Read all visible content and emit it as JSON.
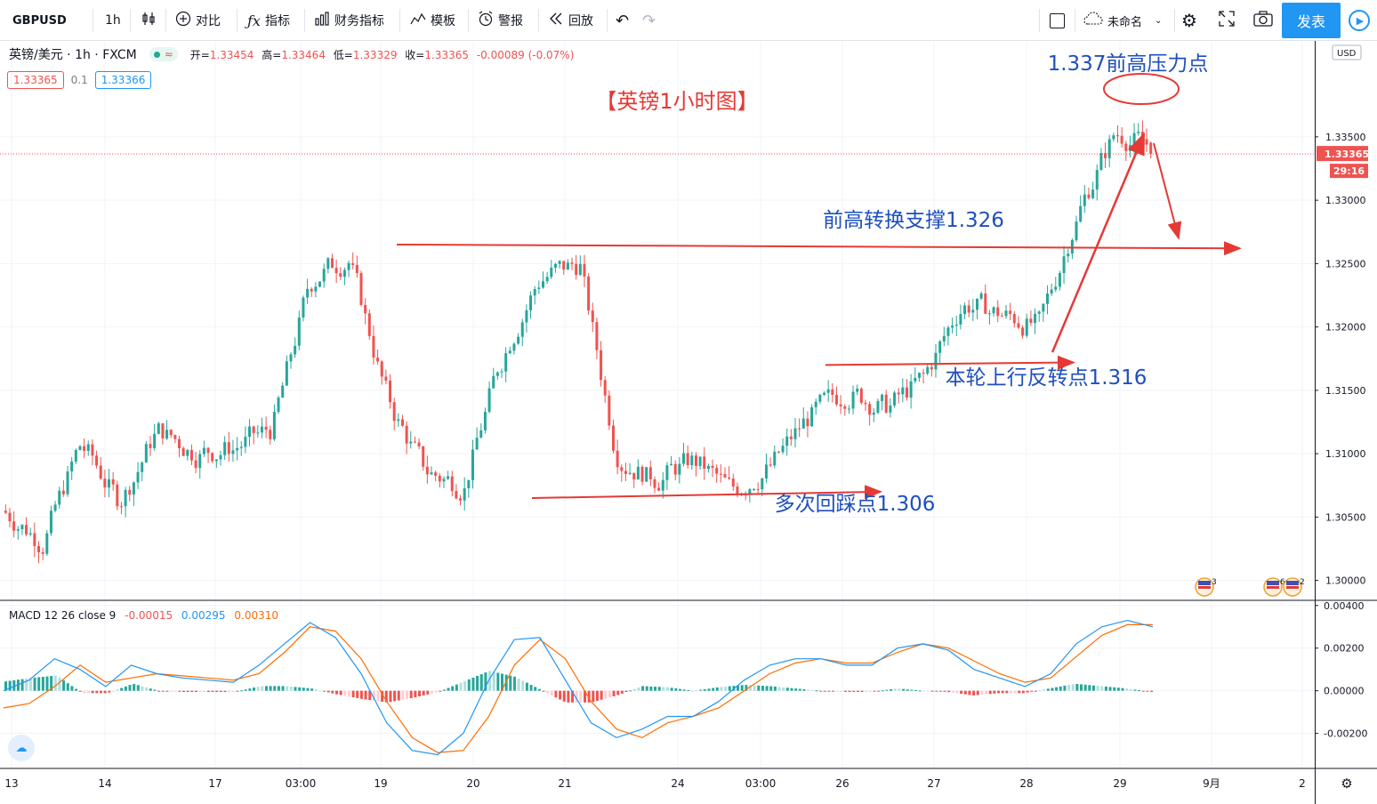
{
  "toolbar": {
    "symbol": "GBPUSD",
    "interval": "1h",
    "compare": "对比",
    "indicators": "指标",
    "financials": "财务指标",
    "templates": "模板",
    "alerts": "警报",
    "replay": "回放",
    "layout_name": "未命名",
    "publish": "发表",
    "icons": [
      "candles-icon",
      "compare-icon",
      "indicator-icon",
      "financials-icon",
      "template-icon",
      "alarm-icon",
      "replay-icon",
      "undo-icon",
      "redo-icon",
      "square-icon",
      "cloud-icon",
      "gear-icon",
      "fullscreen-icon",
      "camera-icon",
      "play-icon"
    ]
  },
  "legend": {
    "symbol_label": "英镑/美元 · 1h · FXCM",
    "ohlc": [
      {
        "label": "开=",
        "value": "1.33454"
      },
      {
        "label": "高=",
        "value": "1.33464"
      },
      {
        "label": "低=",
        "value": "1.33329"
      },
      {
        "label": "收=",
        "value": "1.33365"
      }
    ],
    "change": "-0.00089 (-0.07%)",
    "bid": "1.33365",
    "spread": "0.1",
    "ask": "1.33366"
  },
  "macd_legend": {
    "label": "MACD 12 26 close 9",
    "hist": "-0.00015",
    "macd": "0.00295",
    "signal": "0.00310"
  },
  "price_axis": {
    "currency": "USD",
    "ticks": [
      "1.33500",
      "1.33000",
      "1.32500",
      "1.32000",
      "1.31500",
      "1.31000",
      "1.30500",
      "1.30000"
    ],
    "last_price": "1.33365",
    "countdown": "29:16"
  },
  "macd_axis": {
    "ticks": [
      "0.00400",
      "0.00200",
      "0.00000",
      "-0.00200"
    ]
  },
  "time_axis": {
    "ticks": [
      "13",
      "14",
      "17",
      "03:00",
      "19",
      "20",
      "21",
      "24",
      "03:00",
      "26",
      "27",
      "28",
      "29",
      "9月",
      "2"
    ]
  },
  "events": {
    "flag_a_count": "3",
    "flag_b_count": "6",
    "flag_c_count": "2"
  },
  "annotations": {
    "title": "【英镑1小时图】",
    "resistance": "1.337前高压力点",
    "support_switch": "前高转换支撑1.326",
    "reversal": "本轮上行反转点1.316",
    "pullback": "多次回踩点1.306"
  },
  "colors": {
    "up": "#26a69a",
    "down": "#ef5350",
    "macd_line": "#2196f3",
    "signal_line": "#ff6d00",
    "annotation_red": "#e53935",
    "annotation_blue": "#1e4fbf"
  },
  "chart_data": {
    "type": "candlestick",
    "title": "【英镑1小时图】",
    "ylim": [
      1.2985,
      1.3425
    ],
    "last_price": 1.33365,
    "x_labels": [
      "13",
      "14",
      "17",
      "03:00",
      "19",
      "20",
      "21",
      "24",
      "03:00",
      "26",
      "27",
      "28",
      "29",
      "9月",
      "2"
    ],
    "segments": [
      {
        "from": 1.3055,
        "to": 1.303
      },
      {
        "from": 1.303,
        "to": 1.311
      },
      {
        "from": 1.311,
        "to": 1.306
      },
      {
        "from": 1.306,
        "to": 1.312
      },
      {
        "from": 1.312,
        "to": 1.31
      },
      {
        "from": 1.31,
        "to": 1.3105
      },
      {
        "from": 1.3105,
        "to": 1.312
      },
      {
        "from": 1.312,
        "to": 1.324
      },
      {
        "from": 1.324,
        "to": 1.3255
      },
      {
        "from": 1.3255,
        "to": 1.314
      },
      {
        "from": 1.314,
        "to": 1.3085
      },
      {
        "from": 1.3085,
        "to": 1.3075
      },
      {
        "from": 1.3075,
        "to": 1.318
      },
      {
        "from": 1.318,
        "to": 1.324
      },
      {
        "from": 1.324,
        "to": 1.325
      },
      {
        "from": 1.325,
        "to": 1.3095
      },
      {
        "from": 1.3095,
        "to": 1.308
      },
      {
        "from": 1.308,
        "to": 1.3095
      },
      {
        "from": 1.3095,
        "to": 1.307
      },
      {
        "from": 1.307,
        "to": 1.309
      },
      {
        "from": 1.309,
        "to": 1.313
      },
      {
        "from": 1.313,
        "to": 1.315
      },
      {
        "from": 1.315,
        "to": 1.3135
      },
      {
        "from": 1.3135,
        "to": 1.316
      },
      {
        "from": 1.316,
        "to": 1.322
      },
      {
        "from": 1.322,
        "to": 1.321
      },
      {
        "from": 1.321,
        "to": 1.32
      },
      {
        "from": 1.32,
        "to": 1.329
      },
      {
        "from": 1.329,
        "to": 1.3355
      },
      {
        "from": 1.3355,
        "to": 1.334
      }
    ],
    "macd": {
      "series_macd": [
        0.0,
        0.0005,
        0.0015,
        0.001,
        0.0002,
        0.0012,
        0.0008,
        0.0006,
        0.0005,
        0.0004,
        0.0012,
        0.0022,
        0.0032,
        0.0025,
        0.0008,
        -0.0015,
        -0.0028,
        -0.003,
        -0.002,
        0.0005,
        0.0024,
        0.0025,
        0.0005,
        -0.0015,
        -0.0022,
        -0.0018,
        -0.0012,
        -0.0012,
        -0.0005,
        0.0005,
        0.0012,
        0.0015,
        0.0015,
        0.0012,
        0.0012,
        0.002,
        0.0022,
        0.0019,
        0.001,
        0.0006,
        0.0002,
        0.0008,
        0.0022,
        0.003,
        0.0033,
        0.003
      ],
      "series_signal": [
        -0.0008,
        -0.0006,
        0.0002,
        0.0012,
        0.0004,
        0.0006,
        0.0008,
        0.0007,
        0.0006,
        0.0005,
        0.0008,
        0.0018,
        0.003,
        0.0028,
        0.0015,
        -0.0005,
        -0.0022,
        -0.0029,
        -0.0028,
        -0.0012,
        0.0012,
        0.0024,
        0.0015,
        -0.0005,
        -0.0018,
        -0.0022,
        -0.0015,
        -0.0012,
        -0.0008,
        0.0,
        0.0008,
        0.0013,
        0.0015,
        0.0013,
        0.0013,
        0.0018,
        0.0022,
        0.002,
        0.0014,
        0.0008,
        0.0004,
        0.0006,
        0.0016,
        0.0026,
        0.0031,
        0.0031
      ],
      "ylim": [
        -0.0036,
        0.0042
      ]
    }
  }
}
